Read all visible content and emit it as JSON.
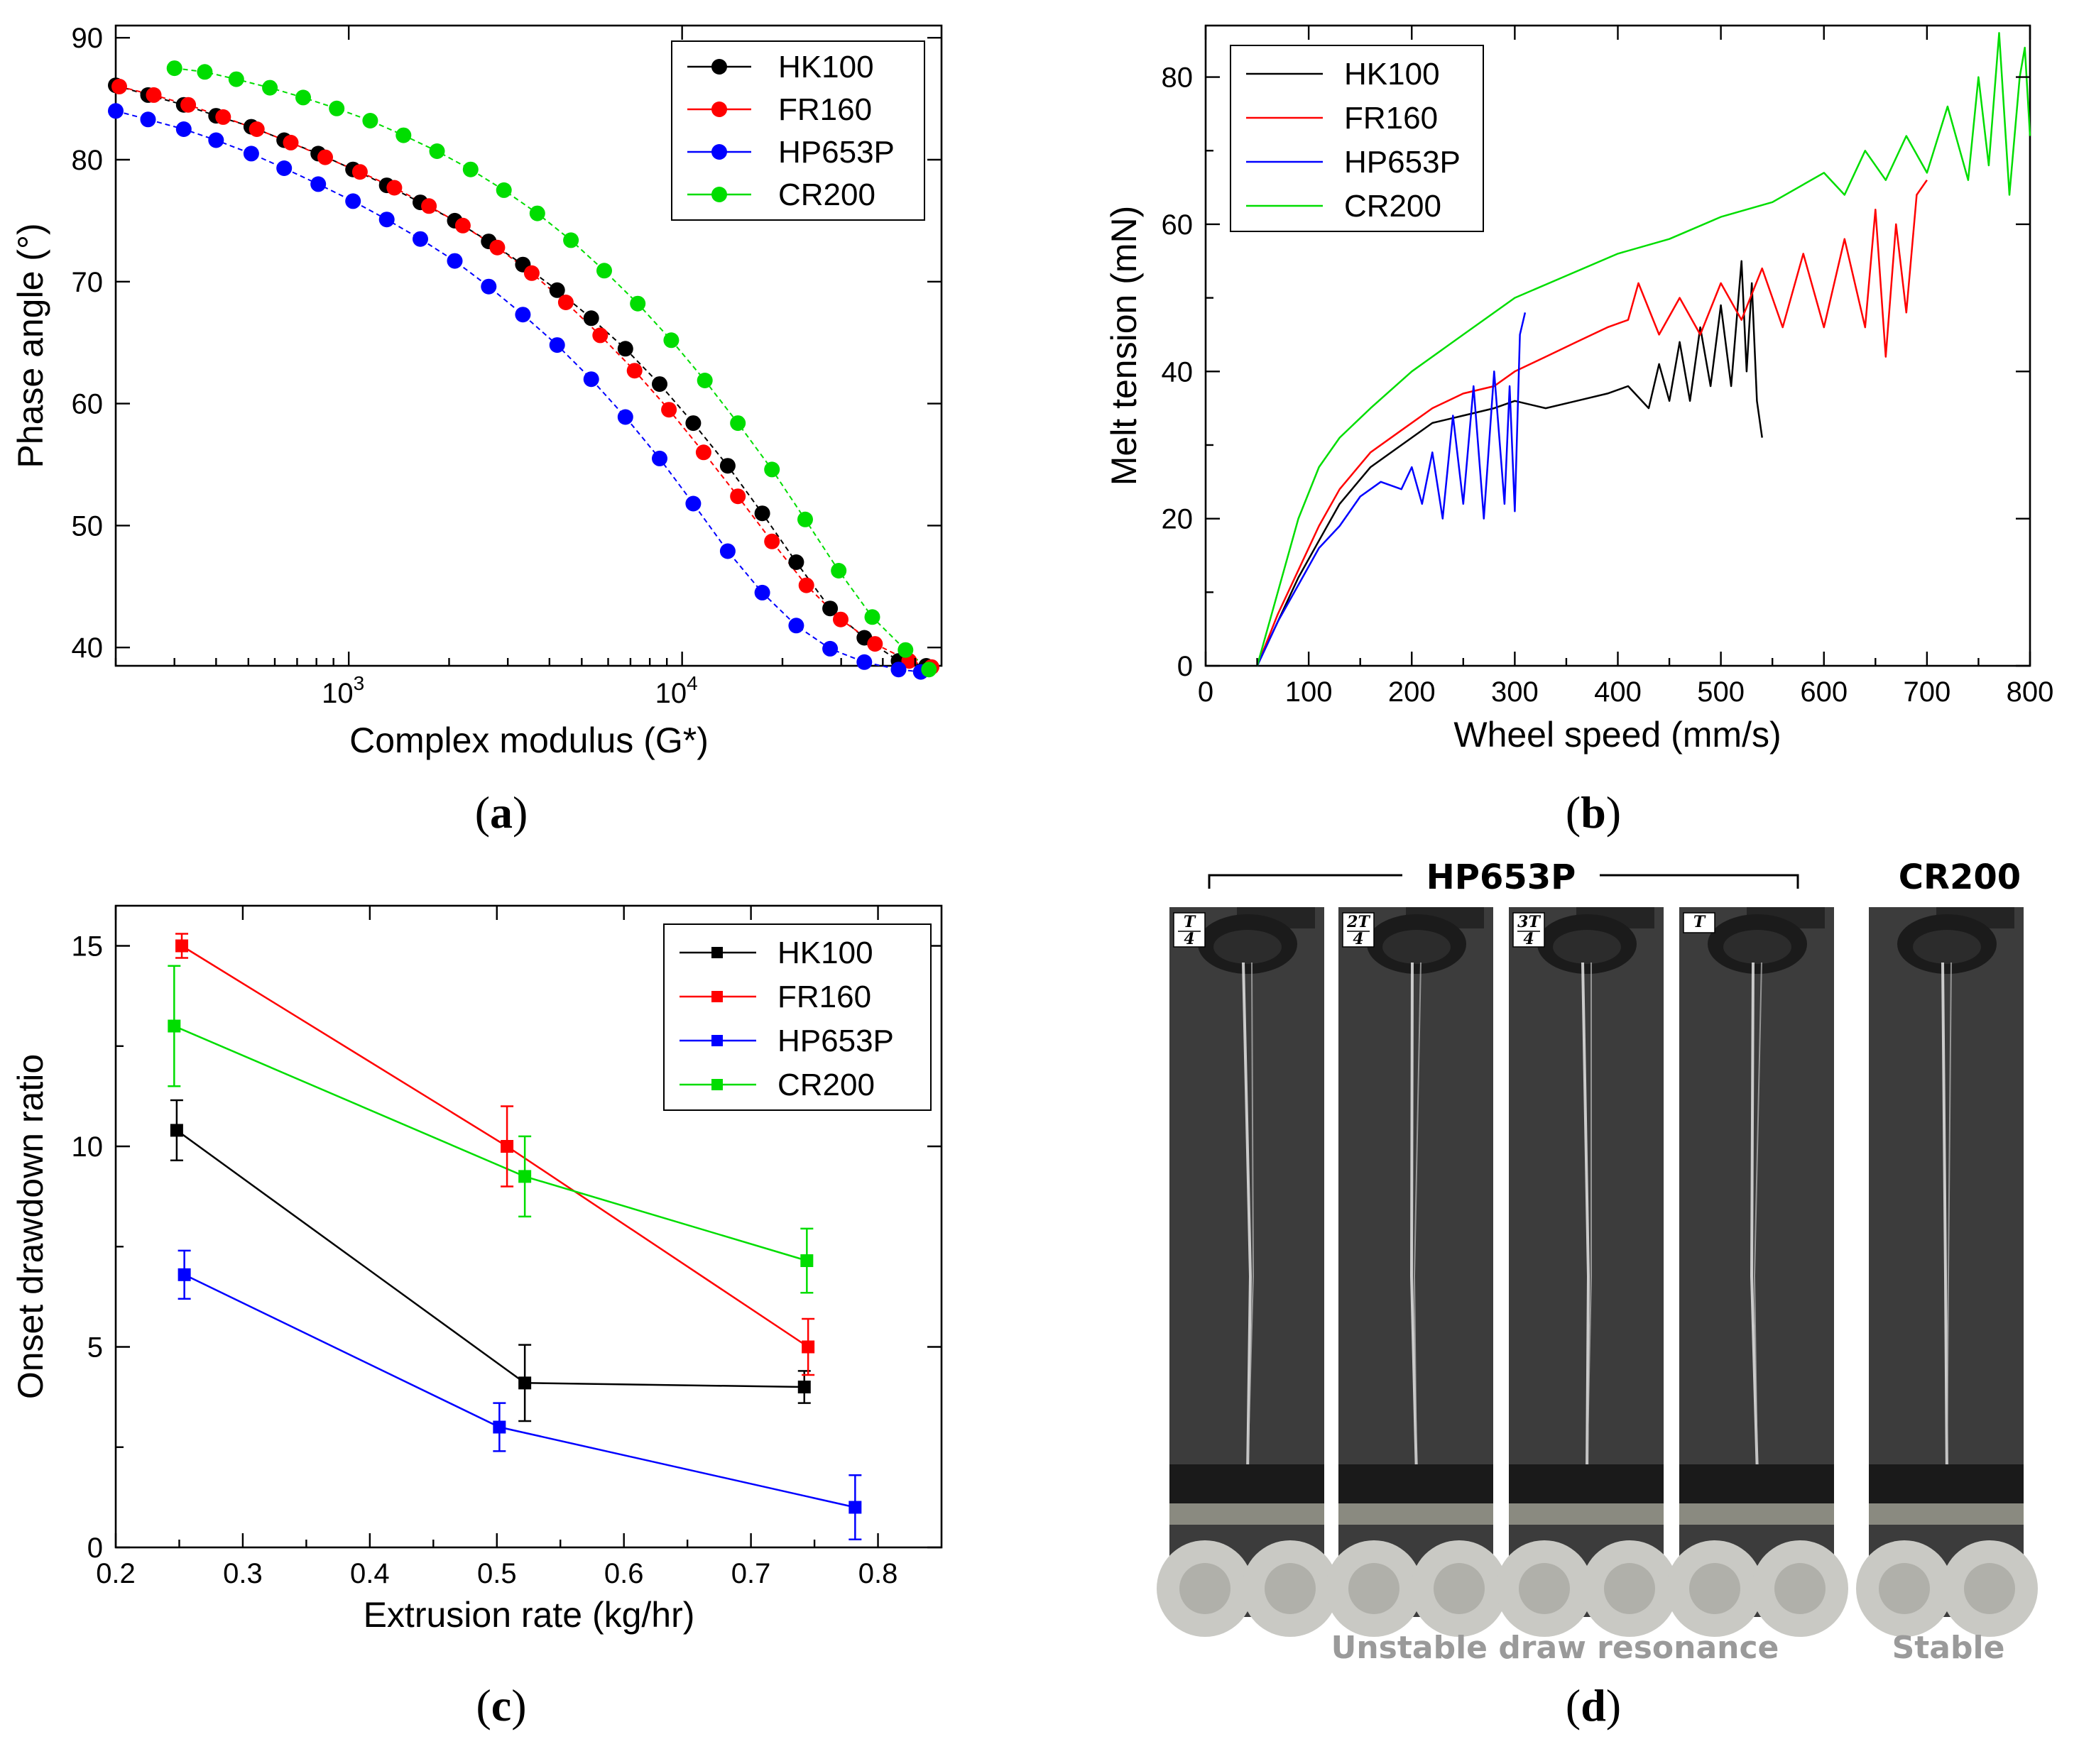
{
  "chart_data": [
    {
      "panel": "a",
      "type": "scatter",
      "caption_letter": "a",
      "xlabel": "Complex modulus (G*)",
      "ylabel": "Phase angle (°)",
      "xscale": "log",
      "xlim": [
        200,
        60000
      ],
      "ylim": [
        38.5,
        91
      ],
      "xticks": [
        {
          "v": 1000,
          "b": "10",
          "e": "3"
        },
        {
          "v": 10000,
          "b": "10",
          "e": "4"
        }
      ],
      "yticks": [
        90,
        80,
        70,
        60,
        50,
        40
      ],
      "legend_position": "top-right",
      "series": [
        {
          "name": "HK100",
          "color": "#000000",
          "marker": "circle",
          "x": [
            200,
            250,
            320,
            400,
            510,
            640,
            810,
            1030,
            1300,
            1640,
            2080,
            2630,
            3330,
            4220,
            5340,
            6760,
            8560,
            10800,
            13700,
            17400,
            22000,
            27800,
            35200,
            44600,
            54000
          ],
          "y": [
            86.1,
            85.3,
            84.5,
            83.6,
            82.7,
            81.6,
            80.5,
            79.2,
            77.9,
            76.5,
            75.0,
            73.3,
            71.4,
            69.3,
            67.0,
            64.5,
            61.6,
            58.4,
            54.9,
            51.0,
            47.0,
            43.2,
            40.8,
            38.9,
            38.5
          ]
        },
        {
          "name": "FR160",
          "color": "#ff0000",
          "marker": "circle",
          "x": [
            205,
            260,
            330,
            420,
            530,
            670,
            850,
            1080,
            1370,
            1740,
            2200,
            2790,
            3540,
            4480,
            5680,
            7200,
            9130,
            11600,
            14700,
            18600,
            23600,
            29900,
            37900,
            48000,
            56000
          ],
          "y": [
            86.0,
            85.3,
            84.5,
            83.5,
            82.5,
            81.4,
            80.2,
            79.0,
            77.7,
            76.2,
            74.6,
            72.8,
            70.7,
            68.3,
            65.6,
            62.7,
            59.5,
            56.0,
            52.4,
            48.7,
            45.1,
            42.3,
            40.3,
            38.9,
            38.4
          ]
        },
        {
          "name": "HP653P",
          "color": "#0000ff",
          "marker": "circle",
          "x": [
            200,
            250,
            320,
            400,
            510,
            640,
            810,
            1030,
            1300,
            1640,
            2080,
            2630,
            3330,
            4220,
            5340,
            6760,
            8560,
            10800,
            13700,
            17400,
            22000,
            27800,
            35200,
            44600,
            52000
          ],
          "y": [
            84.0,
            83.3,
            82.5,
            81.6,
            80.5,
            79.3,
            78.0,
            76.6,
            75.1,
            73.5,
            71.7,
            69.6,
            67.3,
            64.8,
            62.0,
            58.9,
            55.5,
            51.8,
            47.9,
            44.5,
            41.8,
            39.9,
            38.8,
            38.2,
            38.0
          ]
        },
        {
          "name": "CR200",
          "color": "#00dd00",
          "marker": "circle",
          "x": [
            300,
            370,
            460,
            580,
            730,
            920,
            1160,
            1460,
            1840,
            2320,
            2920,
            3680,
            4640,
            5840,
            7360,
            9280,
            11700,
            14700,
            18600,
            23400,
            29500,
            37200,
            46800,
            55000
          ],
          "y": [
            87.5,
            87.2,
            86.6,
            85.9,
            85.1,
            84.2,
            83.2,
            82.0,
            80.7,
            79.2,
            77.5,
            75.6,
            73.4,
            70.9,
            68.2,
            65.2,
            61.9,
            58.4,
            54.6,
            50.5,
            46.3,
            42.5,
            39.8,
            38.2
          ]
        }
      ]
    },
    {
      "panel": "b",
      "type": "line",
      "caption_letter": "b",
      "xlabel": "Wheel speed (mm/s)",
      "ylabel": "Melt tension (mN)",
      "xlim": [
        0,
        800
      ],
      "ylim": [
        0,
        87
      ],
      "xticks": [
        0,
        100,
        200,
        300,
        400,
        500,
        600,
        700,
        800
      ],
      "yticks": [
        0,
        20,
        40,
        60,
        80
      ],
      "legend_position": "top-left",
      "series": [
        {
          "name": "HK100",
          "color": "#000000",
          "x": [
            50,
            70,
            90,
            110,
            130,
            160,
            190,
            220,
            250,
            280,
            300,
            330,
            360,
            390,
            410,
            430,
            440,
            450,
            460,
            470,
            480,
            490,
            500,
            510,
            520,
            525,
            530,
            535,
            540
          ],
          "y": [
            0,
            6,
            12,
            17,
            22,
            27,
            30,
            33,
            34,
            35,
            36,
            35,
            36,
            37,
            38,
            35,
            41,
            36,
            44,
            36,
            46,
            38,
            49,
            38,
            55,
            40,
            52,
            36,
            31
          ]
        },
        {
          "name": "FR160",
          "color": "#ff0000",
          "x": [
            50,
            70,
            90,
            110,
            130,
            160,
            190,
            220,
            250,
            280,
            300,
            330,
            360,
            390,
            410,
            420,
            440,
            460,
            480,
            500,
            520,
            540,
            560,
            580,
            600,
            620,
            640,
            650,
            660,
            670,
            680,
            690,
            700
          ],
          "y": [
            0,
            7,
            13,
            19,
            24,
            29,
            32,
            35,
            37,
            38,
            40,
            42,
            44,
            46,
            47,
            52,
            45,
            50,
            45,
            52,
            47,
            54,
            46,
            56,
            46,
            58,
            46,
            62,
            42,
            60,
            48,
            64,
            66
          ]
        },
        {
          "name": "HP653P",
          "color": "#0000ff",
          "x": [
            50,
            70,
            90,
            110,
            130,
            150,
            170,
            190,
            200,
            210,
            220,
            230,
            240,
            250,
            260,
            270,
            280,
            290,
            295,
            300,
            305,
            310
          ],
          "y": [
            0,
            6,
            11,
            16,
            19,
            23,
            25,
            24,
            27,
            22,
            29,
            20,
            34,
            22,
            38,
            20,
            40,
            22,
            38,
            21,
            45,
            48
          ]
        },
        {
          "name": "CR200",
          "color": "#00dd00",
          "x": [
            50,
            70,
            90,
            110,
            130,
            160,
            200,
            250,
            300,
            350,
            400,
            450,
            500,
            550,
            600,
            620,
            640,
            660,
            680,
            700,
            720,
            740,
            750,
            760,
            770,
            780,
            790,
            795,
            800
          ],
          "y": [
            0,
            10,
            20,
            27,
            31,
            35,
            40,
            45,
            50,
            53,
            56,
            58,
            61,
            63,
            67,
            64,
            70,
            66,
            72,
            67,
            76,
            66,
            80,
            68,
            86,
            64,
            80,
            84,
            72
          ]
        }
      ]
    },
    {
      "panel": "c",
      "type": "line",
      "caption_letter": "c",
      "xlabel": "Extrusion rate (kg/hr)",
      "ylabel": "Onset drawdown ratio",
      "xlim": [
        0.2,
        0.85
      ],
      "ylim": [
        0,
        16
      ],
      "xticks": [
        0.2,
        0.3,
        0.4,
        0.5,
        0.6,
        0.7,
        0.8
      ],
      "yticks": [
        0,
        5,
        10,
        15
      ],
      "legend_position": "top-right",
      "series": [
        {
          "name": "HK100",
          "color": "#000000",
          "marker": "square",
          "x": [
            0.248,
            0.522,
            0.742
          ],
          "y": [
            10.4,
            4.1,
            4.0
          ],
          "err": [
            0.75,
            0.95,
            0.4
          ]
        },
        {
          "name": "FR160",
          "color": "#ff0000",
          "marker": "square",
          "x": [
            0.252,
            0.508,
            0.745
          ],
          "y": [
            15.0,
            10.0,
            5.0
          ],
          "err": [
            0.3,
            1.0,
            0.7
          ]
        },
        {
          "name": "HP653P",
          "color": "#0000ff",
          "marker": "square",
          "x": [
            0.254,
            0.502,
            0.782
          ],
          "y": [
            6.8,
            3.0,
            1.0
          ],
          "err": [
            0.6,
            0.6,
            0.8
          ]
        },
        {
          "name": "CR200",
          "color": "#00dd00",
          "marker": "square",
          "x": [
            0.246,
            0.522,
            0.744
          ],
          "y": [
            13.0,
            9.25,
            7.15
          ],
          "err": [
            1.5,
            1.0,
            0.8
          ]
        }
      ]
    }
  ],
  "panel_d": {
    "caption_letter": "d",
    "group1_title": "HP653P",
    "group2_title": "CR200",
    "frame_labels": [
      {
        "num": "T",
        "den": "4"
      },
      {
        "num": "2T",
        "den": "4"
      },
      {
        "num": "3T",
        "den": "4"
      },
      {
        "num": "T",
        "den": ""
      }
    ],
    "footer_unstable": "Unstable draw resonance",
    "footer_stable": "Stable",
    "colors": {
      "background_dark": "#3c3c3c",
      "footer_gray": "#9a9a9a"
    }
  }
}
